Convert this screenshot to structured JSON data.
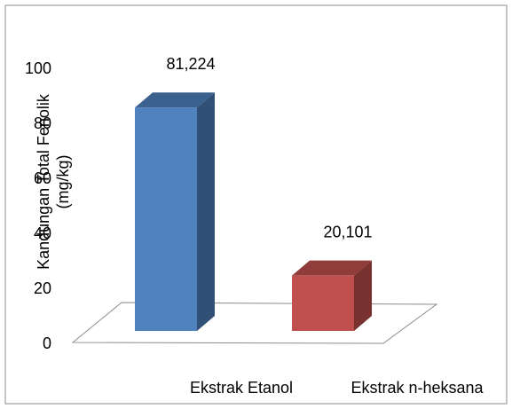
{
  "chart_data": {
    "type": "bar",
    "ylabel": [
      "Kandungan Total Fenolik",
      "(mg/kg)"
    ],
    "categories": [
      "Ekstrak Etanol",
      "Ekstrak n-heksana"
    ],
    "series": [
      {
        "values": [
          81.224,
          20.101
        ],
        "value_labels": [
          "81,224",
          "20,101"
        ],
        "colors": [
          "#4f81bd",
          "#c0504d"
        ]
      }
    ],
    "ylim": [
      0,
      100
    ],
    "yticks": [
      0,
      20,
      40,
      60,
      80,
      100
    ],
    "grid": false
  }
}
